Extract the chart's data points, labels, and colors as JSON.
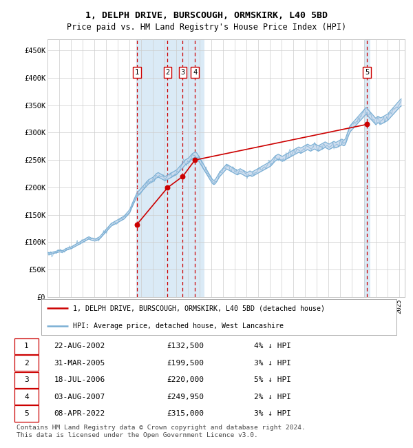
{
  "title1": "1, DELPH DRIVE, BURSCOUGH, ORMSKIRK, L40 5BD",
  "title2": "Price paid vs. HM Land Registry's House Price Index (HPI)",
  "ylim": [
    0,
    470000
  ],
  "ytick_labels": [
    "£0",
    "£50K",
    "£100K",
    "£150K",
    "£200K",
    "£250K",
    "£300K",
    "£350K",
    "£400K",
    "£450K"
  ],
  "ytick_values": [
    0,
    50000,
    100000,
    150000,
    200000,
    250000,
    300000,
    350000,
    400000,
    450000
  ],
  "sale_color": "#cc0000",
  "hpi_fill_color": "#c8d9ed",
  "hpi_line_color": "#7aafd4",
  "background_color": "#ffffff",
  "grid_color": "#cccccc",
  "highlight_color": "#daeaf6",
  "sale_points": [
    {
      "date": "2002-08-22",
      "price": 132500,
      "label": "1"
    },
    {
      "date": "2005-03-31",
      "price": 199500,
      "label": "2"
    },
    {
      "date": "2006-07-18",
      "price": 220000,
      "label": "3"
    },
    {
      "date": "2007-08-03",
      "price": 249950,
      "label": "4"
    },
    {
      "date": "2022-04-08",
      "price": 315000,
      "label": "5"
    }
  ],
  "hpi_data": [
    [
      1995,
      1,
      80000
    ],
    [
      1995,
      2,
      79500
    ],
    [
      1995,
      3,
      79000
    ],
    [
      1995,
      4,
      79500
    ],
    [
      1995,
      5,
      80000
    ],
    [
      1995,
      6,
      80500
    ],
    [
      1995,
      7,
      81000
    ],
    [
      1995,
      8,
      81500
    ],
    [
      1995,
      9,
      82000
    ],
    [
      1995,
      10,
      82500
    ],
    [
      1995,
      11,
      83000
    ],
    [
      1995,
      12,
      83500
    ],
    [
      1996,
      1,
      84000
    ],
    [
      1996,
      2,
      83500
    ],
    [
      1996,
      3,
      83000
    ],
    [
      1996,
      4,
      83500
    ],
    [
      1996,
      5,
      84000
    ],
    [
      1996,
      6,
      85000
    ],
    [
      1996,
      7,
      86000
    ],
    [
      1996,
      8,
      87000
    ],
    [
      1996,
      9,
      88000
    ],
    [
      1996,
      10,
      88500
    ],
    [
      1996,
      11,
      89000
    ],
    [
      1996,
      12,
      89500
    ],
    [
      1997,
      1,
      90000
    ],
    [
      1997,
      2,
      91000
    ],
    [
      1997,
      3,
      92000
    ],
    [
      1997,
      4,
      93000
    ],
    [
      1997,
      5,
      94000
    ],
    [
      1997,
      6,
      95000
    ],
    [
      1997,
      7,
      96000
    ],
    [
      1997,
      8,
      97000
    ],
    [
      1997,
      9,
      98000
    ],
    [
      1997,
      10,
      99000
    ],
    [
      1997,
      11,
      100000
    ],
    [
      1997,
      12,
      101000
    ],
    [
      1998,
      1,
      102000
    ],
    [
      1998,
      2,
      103000
    ],
    [
      1998,
      3,
      104000
    ],
    [
      1998,
      4,
      105000
    ],
    [
      1998,
      5,
      106000
    ],
    [
      1998,
      6,
      107000
    ],
    [
      1998,
      7,
      108000
    ],
    [
      1998,
      8,
      107000
    ],
    [
      1998,
      9,
      106000
    ],
    [
      1998,
      10,
      105500
    ],
    [
      1998,
      11,
      105000
    ],
    [
      1998,
      12,
      104500
    ],
    [
      1999,
      1,
      104000
    ],
    [
      1999,
      2,
      104500
    ],
    [
      1999,
      3,
      105000
    ],
    [
      1999,
      4,
      106000
    ],
    [
      1999,
      5,
      107000
    ],
    [
      1999,
      6,
      108000
    ],
    [
      1999,
      7,
      110000
    ],
    [
      1999,
      8,
      112000
    ],
    [
      1999,
      9,
      114000
    ],
    [
      1999,
      10,
      116000
    ],
    [
      1999,
      11,
      118000
    ],
    [
      1999,
      12,
      120000
    ],
    [
      2000,
      1,
      122000
    ],
    [
      2000,
      2,
      124000
    ],
    [
      2000,
      3,
      126000
    ],
    [
      2000,
      4,
      128000
    ],
    [
      2000,
      5,
      130000
    ],
    [
      2000,
      6,
      132000
    ],
    [
      2000,
      7,
      133000
    ],
    [
      2000,
      8,
      134000
    ],
    [
      2000,
      9,
      135000
    ],
    [
      2000,
      10,
      136000
    ],
    [
      2000,
      11,
      137000
    ],
    [
      2000,
      12,
      138000
    ],
    [
      2001,
      1,
      139000
    ],
    [
      2001,
      2,
      140000
    ],
    [
      2001,
      3,
      141000
    ],
    [
      2001,
      4,
      142000
    ],
    [
      2001,
      5,
      143000
    ],
    [
      2001,
      6,
      144000
    ],
    [
      2001,
      7,
      145000
    ],
    [
      2001,
      8,
      147000
    ],
    [
      2001,
      9,
      149000
    ],
    [
      2001,
      10,
      151000
    ],
    [
      2001,
      11,
      153000
    ],
    [
      2001,
      12,
      155000
    ],
    [
      2002,
      1,
      158000
    ],
    [
      2002,
      2,
      162000
    ],
    [
      2002,
      3,
      166000
    ],
    [
      2002,
      4,
      170000
    ],
    [
      2002,
      5,
      174000
    ],
    [
      2002,
      6,
      178000
    ],
    [
      2002,
      7,
      182000
    ],
    [
      2002,
      8,
      186000
    ],
    [
      2002,
      9,
      188000
    ],
    [
      2002,
      10,
      190000
    ],
    [
      2002,
      11,
      192000
    ],
    [
      2002,
      12,
      194000
    ],
    [
      2003,
      1,
      196000
    ],
    [
      2003,
      2,
      198000
    ],
    [
      2003,
      3,
      200000
    ],
    [
      2003,
      4,
      202000
    ],
    [
      2003,
      5,
      204000
    ],
    [
      2003,
      6,
      206000
    ],
    [
      2003,
      7,
      208000
    ],
    [
      2003,
      8,
      210000
    ],
    [
      2003,
      9,
      211000
    ],
    [
      2003,
      10,
      212000
    ],
    [
      2003,
      11,
      213000
    ],
    [
      2003,
      12,
      214000
    ],
    [
      2004,
      1,
      215000
    ],
    [
      2004,
      2,
      217000
    ],
    [
      2004,
      3,
      219000
    ],
    [
      2004,
      4,
      221000
    ],
    [
      2004,
      5,
      222000
    ],
    [
      2004,
      6,
      223000
    ],
    [
      2004,
      7,
      222000
    ],
    [
      2004,
      8,
      221000
    ],
    [
      2004,
      9,
      220000
    ],
    [
      2004,
      10,
      219000
    ],
    [
      2004,
      11,
      218000
    ],
    [
      2004,
      12,
      217000
    ],
    [
      2005,
      1,
      216000
    ],
    [
      2005,
      2,
      217000
    ],
    [
      2005,
      3,
      218000
    ],
    [
      2005,
      4,
      219000
    ],
    [
      2005,
      5,
      220000
    ],
    [
      2005,
      6,
      221000
    ],
    [
      2005,
      7,
      222000
    ],
    [
      2005,
      8,
      223000
    ],
    [
      2005,
      9,
      224000
    ],
    [
      2005,
      10,
      225000
    ],
    [
      2005,
      11,
      226000
    ],
    [
      2005,
      12,
      227000
    ],
    [
      2006,
      1,
      228000
    ],
    [
      2006,
      2,
      230000
    ],
    [
      2006,
      3,
      232000
    ],
    [
      2006,
      4,
      234000
    ],
    [
      2006,
      5,
      236000
    ],
    [
      2006,
      6,
      238000
    ],
    [
      2006,
      7,
      240000
    ],
    [
      2006,
      8,
      242000
    ],
    [
      2006,
      9,
      244000
    ],
    [
      2006,
      10,
      246000
    ],
    [
      2006,
      11,
      247000
    ],
    [
      2006,
      12,
      248000
    ],
    [
      2007,
      1,
      249000
    ],
    [
      2007,
      2,
      251000
    ],
    [
      2007,
      3,
      253000
    ],
    [
      2007,
      4,
      255000
    ],
    [
      2007,
      5,
      257000
    ],
    [
      2007,
      6,
      258000
    ],
    [
      2007,
      7,
      259000
    ],
    [
      2007,
      8,
      260000
    ],
    [
      2007,
      9,
      259000
    ],
    [
      2007,
      10,
      257000
    ],
    [
      2007,
      11,
      254000
    ],
    [
      2007,
      12,
      251000
    ],
    [
      2008,
      1,
      248000
    ],
    [
      2008,
      2,
      245000
    ],
    [
      2008,
      3,
      242000
    ],
    [
      2008,
      4,
      239000
    ],
    [
      2008,
      5,
      236000
    ],
    [
      2008,
      6,
      233000
    ],
    [
      2008,
      7,
      230000
    ],
    [
      2008,
      8,
      227000
    ],
    [
      2008,
      9,
      224000
    ],
    [
      2008,
      10,
      221000
    ],
    [
      2008,
      11,
      218000
    ],
    [
      2008,
      12,
      215000
    ],
    [
      2009,
      1,
      212000
    ],
    [
      2009,
      2,
      210000
    ],
    [
      2009,
      3,
      209000
    ],
    [
      2009,
      4,
      210000
    ],
    [
      2009,
      5,
      212000
    ],
    [
      2009,
      6,
      215000
    ],
    [
      2009,
      7,
      218000
    ],
    [
      2009,
      8,
      221000
    ],
    [
      2009,
      9,
      224000
    ],
    [
      2009,
      10,
      226000
    ],
    [
      2009,
      11,
      228000
    ],
    [
      2009,
      12,
      230000
    ],
    [
      2010,
      1,
      232000
    ],
    [
      2010,
      2,
      234000
    ],
    [
      2010,
      3,
      236000
    ],
    [
      2010,
      4,
      238000
    ],
    [
      2010,
      5,
      237000
    ],
    [
      2010,
      6,
      236000
    ],
    [
      2010,
      7,
      235000
    ],
    [
      2010,
      8,
      234000
    ],
    [
      2010,
      9,
      233000
    ],
    [
      2010,
      10,
      232000
    ],
    [
      2010,
      11,
      231000
    ],
    [
      2010,
      12,
      230000
    ],
    [
      2011,
      1,
      229000
    ],
    [
      2011,
      2,
      228000
    ],
    [
      2011,
      3,
      227000
    ],
    [
      2011,
      4,
      228000
    ],
    [
      2011,
      5,
      229000
    ],
    [
      2011,
      6,
      230000
    ],
    [
      2011,
      7,
      229000
    ],
    [
      2011,
      8,
      228000
    ],
    [
      2011,
      9,
      227000
    ],
    [
      2011,
      10,
      226000
    ],
    [
      2011,
      11,
      225000
    ],
    [
      2011,
      12,
      224000
    ],
    [
      2012,
      1,
      223000
    ],
    [
      2012,
      2,
      224000
    ],
    [
      2012,
      3,
      225000
    ],
    [
      2012,
      4,
      226000
    ],
    [
      2012,
      5,
      225000
    ],
    [
      2012,
      6,
      224000
    ],
    [
      2012,
      7,
      225000
    ],
    [
      2012,
      8,
      226000
    ],
    [
      2012,
      9,
      227000
    ],
    [
      2012,
      10,
      228000
    ],
    [
      2012,
      11,
      229000
    ],
    [
      2012,
      12,
      230000
    ],
    [
      2013,
      1,
      231000
    ],
    [
      2013,
      2,
      232000
    ],
    [
      2013,
      3,
      233000
    ],
    [
      2013,
      4,
      234000
    ],
    [
      2013,
      5,
      235000
    ],
    [
      2013,
      6,
      236000
    ],
    [
      2013,
      7,
      237000
    ],
    [
      2013,
      8,
      238000
    ],
    [
      2013,
      9,
      239000
    ],
    [
      2013,
      10,
      240000
    ],
    [
      2013,
      11,
      241000
    ],
    [
      2013,
      12,
      242000
    ],
    [
      2014,
      1,
      243000
    ],
    [
      2014,
      2,
      245000
    ],
    [
      2014,
      3,
      247000
    ],
    [
      2014,
      4,
      249000
    ],
    [
      2014,
      5,
      251000
    ],
    [
      2014,
      6,
      253000
    ],
    [
      2014,
      7,
      254000
    ],
    [
      2014,
      8,
      255000
    ],
    [
      2014,
      9,
      256000
    ],
    [
      2014,
      10,
      255000
    ],
    [
      2014,
      11,
      254000
    ],
    [
      2014,
      12,
      253000
    ],
    [
      2015,
      1,
      252000
    ],
    [
      2015,
      2,
      253000
    ],
    [
      2015,
      3,
      254000
    ],
    [
      2015,
      4,
      255000
    ],
    [
      2015,
      5,
      256000
    ],
    [
      2015,
      6,
      257000
    ],
    [
      2015,
      7,
      258000
    ],
    [
      2015,
      8,
      259000
    ],
    [
      2015,
      9,
      260000
    ],
    [
      2015,
      10,
      261000
    ],
    [
      2015,
      11,
      262000
    ],
    [
      2015,
      12,
      263000
    ],
    [
      2016,
      1,
      264000
    ],
    [
      2016,
      2,
      265000
    ],
    [
      2016,
      3,
      266000
    ],
    [
      2016,
      4,
      267000
    ],
    [
      2016,
      5,
      268000
    ],
    [
      2016,
      6,
      269000
    ],
    [
      2016,
      7,
      268000
    ],
    [
      2016,
      8,
      267000
    ],
    [
      2016,
      9,
      268000
    ],
    [
      2016,
      10,
      269000
    ],
    [
      2016,
      11,
      270000
    ],
    [
      2016,
      12,
      271000
    ],
    [
      2017,
      1,
      272000
    ],
    [
      2017,
      2,
      273000
    ],
    [
      2017,
      3,
      274000
    ],
    [
      2017,
      4,
      273000
    ],
    [
      2017,
      5,
      272000
    ],
    [
      2017,
      6,
      271000
    ],
    [
      2017,
      7,
      272000
    ],
    [
      2017,
      8,
      273000
    ],
    [
      2017,
      9,
      274000
    ],
    [
      2017,
      10,
      275000
    ],
    [
      2017,
      11,
      274000
    ],
    [
      2017,
      12,
      273000
    ],
    [
      2018,
      1,
      272000
    ],
    [
      2018,
      2,
      271000
    ],
    [
      2018,
      3,
      272000
    ],
    [
      2018,
      4,
      273000
    ],
    [
      2018,
      5,
      274000
    ],
    [
      2018,
      6,
      275000
    ],
    [
      2018,
      7,
      276000
    ],
    [
      2018,
      8,
      277000
    ],
    [
      2018,
      9,
      278000
    ],
    [
      2018,
      10,
      277000
    ],
    [
      2018,
      11,
      276000
    ],
    [
      2018,
      12,
      275000
    ],
    [
      2019,
      1,
      274000
    ],
    [
      2019,
      2,
      275000
    ],
    [
      2019,
      3,
      276000
    ],
    [
      2019,
      4,
      277000
    ],
    [
      2019,
      5,
      278000
    ],
    [
      2019,
      6,
      279000
    ],
    [
      2019,
      7,
      278000
    ],
    [
      2019,
      8,
      277000
    ],
    [
      2019,
      9,
      278000
    ],
    [
      2019,
      10,
      279000
    ],
    [
      2019,
      11,
      280000
    ],
    [
      2019,
      12,
      281000
    ],
    [
      2020,
      1,
      282000
    ],
    [
      2020,
      2,
      283000
    ],
    [
      2020,
      3,
      282000
    ],
    [
      2020,
      4,
      281000
    ],
    [
      2020,
      5,
      282000
    ],
    [
      2020,
      6,
      285000
    ],
    [
      2020,
      7,
      290000
    ],
    [
      2020,
      8,
      295000
    ],
    [
      2020,
      9,
      300000
    ],
    [
      2020,
      10,
      305000
    ],
    [
      2020,
      11,
      308000
    ],
    [
      2020,
      12,
      310000
    ],
    [
      2021,
      1,
      312000
    ],
    [
      2021,
      2,
      314000
    ],
    [
      2021,
      3,
      316000
    ],
    [
      2021,
      4,
      318000
    ],
    [
      2021,
      5,
      320000
    ],
    [
      2021,
      6,
      322000
    ],
    [
      2021,
      7,
      324000
    ],
    [
      2021,
      8,
      326000
    ],
    [
      2021,
      9,
      328000
    ],
    [
      2021,
      10,
      330000
    ],
    [
      2021,
      11,
      332000
    ],
    [
      2021,
      12,
      334000
    ],
    [
      2022,
      1,
      336000
    ],
    [
      2022,
      2,
      338000
    ],
    [
      2022,
      3,
      340000
    ],
    [
      2022,
      4,
      338000
    ],
    [
      2022,
      5,
      336000
    ],
    [
      2022,
      6,
      334000
    ],
    [
      2022,
      7,
      332000
    ],
    [
      2022,
      8,
      330000
    ],
    [
      2022,
      9,
      328000
    ],
    [
      2022,
      10,
      326000
    ],
    [
      2022,
      11,
      324000
    ],
    [
      2022,
      12,
      322000
    ],
    [
      2023,
      1,
      320000
    ],
    [
      2023,
      2,
      322000
    ],
    [
      2023,
      3,
      324000
    ],
    [
      2023,
      4,
      323000
    ],
    [
      2023,
      5,
      322000
    ],
    [
      2023,
      6,
      321000
    ],
    [
      2023,
      7,
      322000
    ],
    [
      2023,
      8,
      323000
    ],
    [
      2023,
      9,
      324000
    ],
    [
      2023,
      10,
      325000
    ],
    [
      2023,
      11,
      326000
    ],
    [
      2023,
      12,
      327000
    ],
    [
      2024,
      1,
      328000
    ],
    [
      2024,
      2,
      330000
    ],
    [
      2024,
      3,
      332000
    ],
    [
      2024,
      4,
      334000
    ],
    [
      2024,
      5,
      336000
    ],
    [
      2024,
      6,
      338000
    ],
    [
      2024,
      7,
      340000
    ],
    [
      2024,
      8,
      342000
    ],
    [
      2024,
      9,
      344000
    ],
    [
      2024,
      10,
      346000
    ],
    [
      2024,
      11,
      348000
    ],
    [
      2024,
      12,
      350000
    ],
    [
      2025,
      1,
      352000
    ],
    [
      2025,
      2,
      354000
    ],
    [
      2025,
      3,
      355000
    ]
  ],
  "table_rows": [
    {
      "num": "1",
      "date": "22-AUG-2002",
      "price": "£132,500",
      "hpi": "4% ↓ HPI"
    },
    {
      "num": "2",
      "date": "31-MAR-2005",
      "price": "£199,500",
      "hpi": "3% ↓ HPI"
    },
    {
      "num": "3",
      "date": "18-JUL-2006",
      "price": "£220,000",
      "hpi": "5% ↓ HPI"
    },
    {
      "num": "4",
      "date": "03-AUG-2007",
      "price": "£249,950",
      "hpi": "2% ↓ HPI"
    },
    {
      "num": "5",
      "date": "08-APR-2022",
      "price": "£315,000",
      "hpi": "3% ↓ HPI"
    }
  ],
  "footer_text": "Contains HM Land Registry data © Crown copyright and database right 2024.\nThis data is licensed under the Open Government Licence v3.0.",
  "legend_label1": "1, DELPH DRIVE, BURSCOUGH, ORMSKIRK, L40 5BD (detached house)",
  "legend_label2": "HPI: Average price, detached house, West Lancashire",
  "xstart_year": 1995,
  "xend_year": 2025
}
